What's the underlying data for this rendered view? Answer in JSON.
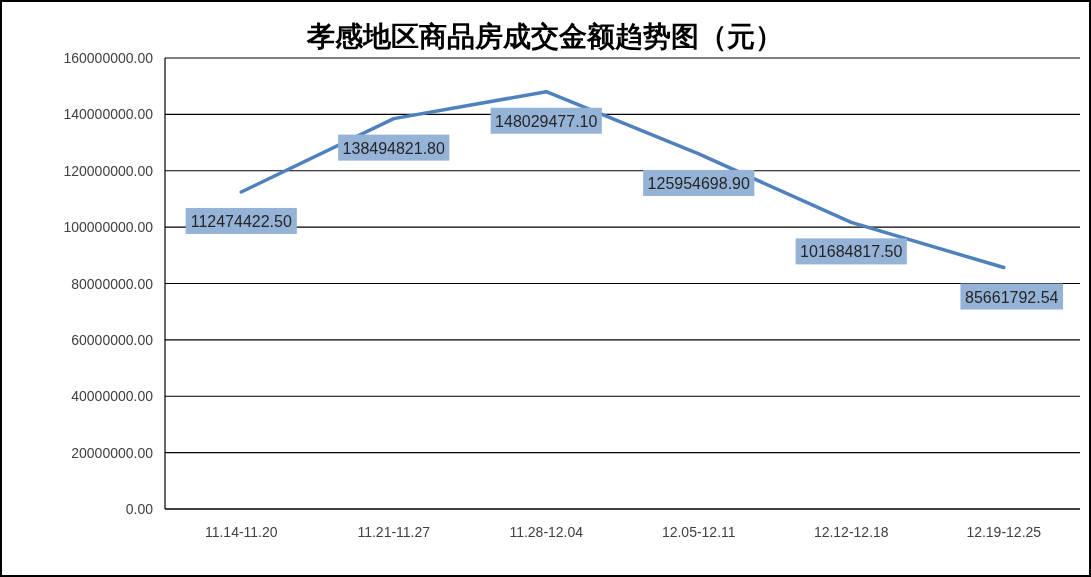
{
  "chart_data": {
    "type": "line",
    "title": "孝感地区商品房成交金额趋势图（元）",
    "categories": [
      "11.14-11.20",
      "11.21-11.27",
      "11.28-12.04",
      "12.05-12.11",
      "12.12-12.18",
      "12.19-12.25"
    ],
    "series": [
      {
        "color": "#4f81bd",
        "values": [
          112474422.5,
          138494821.8,
          148029477.1,
          125954698.9,
          101684817.5,
          85661792.54
        ],
        "value_labels": [
          "112474422.50",
          "138494821.80",
          "148029477.10",
          "125954698.90",
          "101684817.50",
          "85661792.54"
        ]
      }
    ],
    "ylim": [
      0,
      160000000
    ],
    "yticks": [
      {
        "value": 0,
        "label": "0.00"
      },
      {
        "value": 20000000,
        "label": "20000000.00"
      },
      {
        "value": 40000000,
        "label": "40000000.00"
      },
      {
        "value": 60000000,
        "label": "60000000.00"
      },
      {
        "value": 80000000,
        "label": "80000000.00"
      },
      {
        "value": 100000000,
        "label": "100000000.00"
      },
      {
        "value": 120000000,
        "label": "120000000.00"
      },
      {
        "value": 140000000,
        "label": "140000000.00"
      },
      {
        "value": 160000000,
        "label": "160000000.00"
      }
    ],
    "grid": "y",
    "marker": "none",
    "line_style": "solid"
  }
}
